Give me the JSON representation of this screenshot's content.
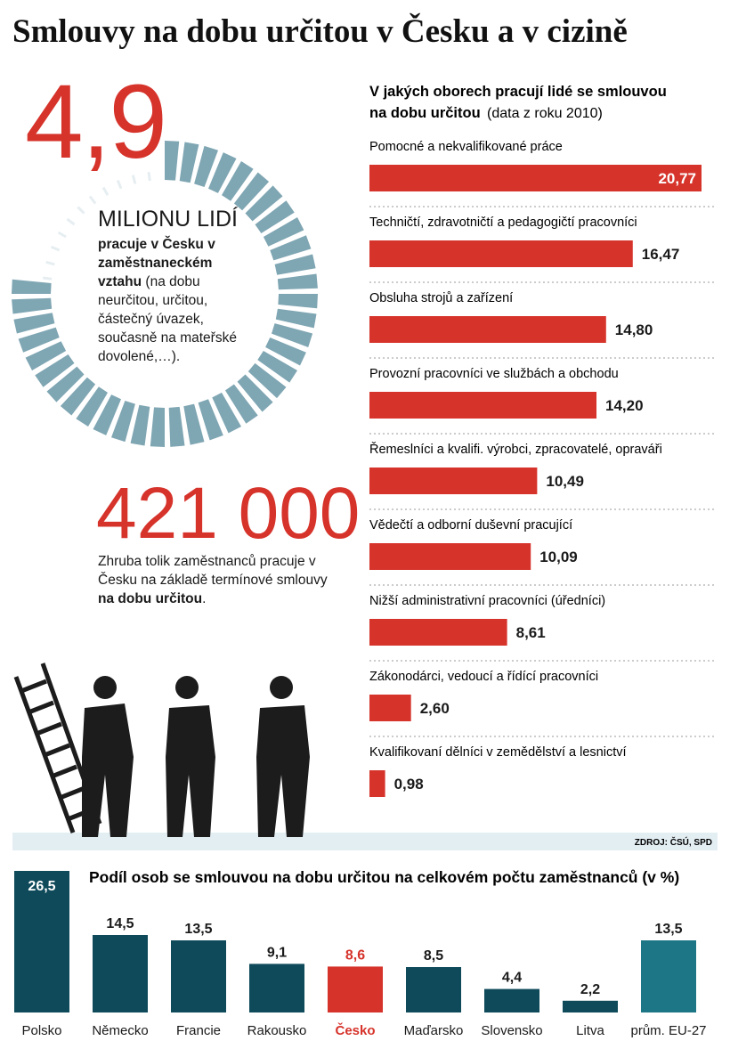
{
  "title": "Smlouvy na dobu určitou v Česku a v cizině",
  "stat_main": {
    "number": "4,9",
    "unit": "MILIONU LIDÍ",
    "text_bold": "pracuje v Česku v zaměstnaneckém vztahu",
    "text": "(na dobu neurčitou, určitou, částečný úvazek, současně na mateřské dovolené,…)."
  },
  "stat_second": {
    "number": "421 000",
    "text": "Zhruba tolik zaměstnanců pracuje v Česku na základě termínové smlouvy",
    "text_bold": "na dobu určitou",
    "text_end": "."
  },
  "source": "ZDROJ: ČSÚ, SPD",
  "chart_data": [
    {
      "type": "hbar",
      "title": "V jakých oborech pracují lidé se smlouvou na dobu určitou",
      "subtitle": "(data z roku 2010)",
      "categories": [
        "Pomocné a nekvalifikované práce",
        "Techničtí, zdravotničtí a pedagogičtí pracovníci",
        "Obsluha strojů a zařízení",
        "Provozní pracovníci ve službách a obchodu",
        "Řemeslníci a kvalifi. výrobci, zpracovatelé, opraváři",
        "Vědečtí a odborní duševní pracující",
        "Nižší administrativní pracovníci (úředníci)",
        "Zákonodárci, vedoucí a řídící pracovníci",
        "Kvalifikovaní dělníci v zemědělství a lesnictví"
      ],
      "values": [
        20.77,
        16.47,
        14.8,
        14.2,
        10.49,
        10.09,
        8.61,
        2.6,
        0.98
      ],
      "value_labels": [
        "20,77",
        "16,47",
        "14,80",
        "14,20",
        "10,49",
        "10,09",
        "8,61",
        "2,60",
        "0,98"
      ],
      "color": "#d6332b"
    },
    {
      "type": "bar",
      "title": "Podíl osob se smlouvou na dobu určitou na celkovém počtu zaměstnanců (v %)",
      "categories": [
        "Polsko",
        "Německo",
        "Francie",
        "Rakousko",
        "Česko",
        "Maďarsko",
        "Slovensko",
        "Litva",
        "prům. EU-27"
      ],
      "values": [
        26.5,
        14.5,
        13.5,
        9.1,
        8.6,
        8.5,
        4.4,
        2.2,
        13.5
      ],
      "value_labels": [
        "26,5",
        "14,5",
        "13,5",
        "9,1",
        "8,6",
        "8,5",
        "4,4",
        "2,2",
        "13,5"
      ],
      "colors": [
        "#0e4a5a",
        "#0e4a5a",
        "#0e4a5a",
        "#0e4a5a",
        "#d6332b",
        "#0e4a5a",
        "#0e4a5a",
        "#0e4a5a",
        "#1d7686"
      ]
    }
  ]
}
